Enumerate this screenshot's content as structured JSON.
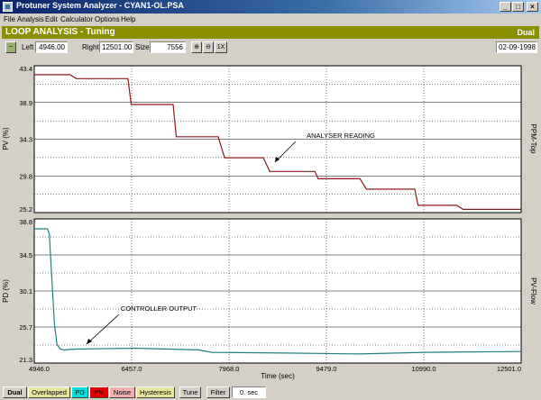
{
  "window": {
    "title": "Protuner System Analyzer - CYAN1-OL.PSA"
  },
  "menu": [
    "File",
    "Analysis",
    "Edit",
    "Calculator",
    "Options",
    "Help"
  ],
  "header": {
    "title": "LOOP ANALYSIS - Tuning",
    "mode": "Dual"
  },
  "toolbar": {
    "left_label": "Left",
    "left_value": "4946.00",
    "right_label": "Right",
    "right_value": "12501.00",
    "size_label": "Size",
    "size_value": "7556",
    "zoom_reset": "1X",
    "date": "02-09-1998"
  },
  "colors": {
    "header_bg": "#8a8f00",
    "pv_line": "#8b1a1a",
    "pd_line": "#1f8080",
    "plot_bg": "#ffffff"
  },
  "chart_data": [
    {
      "type": "line",
      "ylabel": "PV (%)",
      "side_label": "PPM-Top",
      "ylim": [
        25.2,
        43.4
      ],
      "y_ticks": [
        "43.4",
        "38.9",
        "34.3",
        "29.8",
        "25.2"
      ],
      "xlim": [
        4946.0,
        12501.0
      ],
      "annotation": "ANALYSER READING",
      "series": [
        {
          "x": [
            4946,
            5500,
            5600,
            6400,
            6450,
            7100,
            7150,
            7800,
            7900,
            8500,
            8600,
            9300,
            9350,
            10000,
            10100,
            10850,
            10900,
            11500,
            11600,
            12501
          ],
          "y": [
            42.3,
            42.3,
            41.8,
            41.8,
            38.6,
            38.6,
            34.6,
            34.6,
            32.0,
            32.0,
            30.3,
            30.3,
            29.4,
            29.4,
            28.1,
            28.1,
            26.1,
            26.1,
            25.6,
            25.6
          ]
        }
      ]
    },
    {
      "type": "line",
      "ylabel": "PD (%)",
      "side_label": "PV-Flow",
      "ylim": [
        21.3,
        38.8
      ],
      "y_ticks": [
        "38.8",
        "34.5",
        "30.1",
        "25.7",
        "21.3"
      ],
      "xlim": [
        4946.0,
        12501.0
      ],
      "x_ticks": [
        "4946.0",
        "6457.0",
        "7968.0",
        "9479.0",
        "10990.0",
        "12501.0"
      ],
      "xlabel": "Time (sec)",
      "annotation": "CONTROLLER OUTPUT",
      "series": [
        {
          "x": [
            4946,
            5150,
            5180,
            5200,
            5230,
            5260,
            5300,
            5350,
            5400,
            5600,
            6500,
            7500,
            7700,
            9000,
            10000,
            11000,
            12501
          ],
          "y": [
            37.6,
            37.6,
            37.0,
            34.0,
            30.0,
            26.0,
            23.5,
            23.0,
            22.9,
            23.0,
            23.1,
            22.9,
            22.6,
            22.5,
            22.4,
            22.6,
            22.7
          ]
        }
      ]
    }
  ],
  "status": {
    "buttons": [
      "Dual",
      "Overlapped",
      "PD",
      "PV",
      "Noise",
      "Hysteresis",
      "Tune",
      "Filter"
    ],
    "filter_value": "0. sec"
  }
}
